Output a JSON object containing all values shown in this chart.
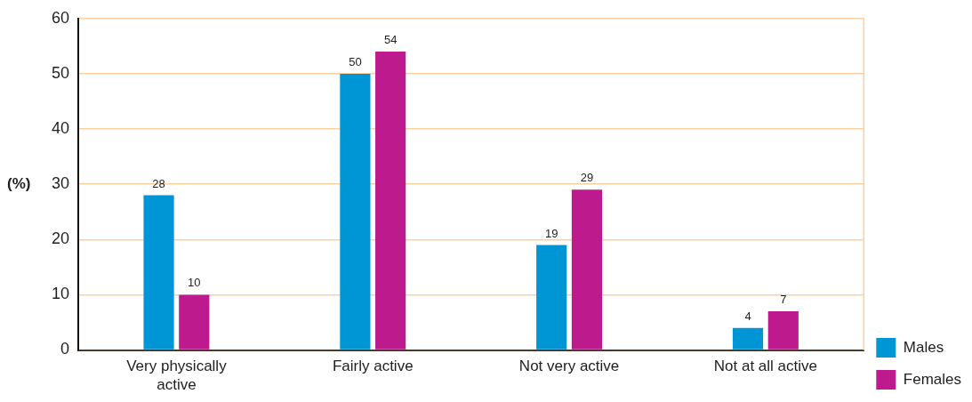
{
  "chart_data": {
    "type": "bar",
    "ylabel": "(%)",
    "categories": [
      "Very physically active",
      "Fairly active",
      "Not very active",
      "Not at all active"
    ],
    "series": [
      {
        "name": "Males",
        "color": "#0096d6",
        "values": [
          28,
          50,
          19,
          4
        ]
      },
      {
        "name": "Females",
        "color": "#bd1a8d",
        "values": [
          10,
          54,
          29,
          7
        ]
      }
    ],
    "ylim": [
      0,
      60
    ],
    "yticks": [
      0,
      10,
      20,
      30,
      40,
      50,
      60
    ],
    "grid": "y",
    "legend": "bottom right",
    "data_labels": true
  }
}
